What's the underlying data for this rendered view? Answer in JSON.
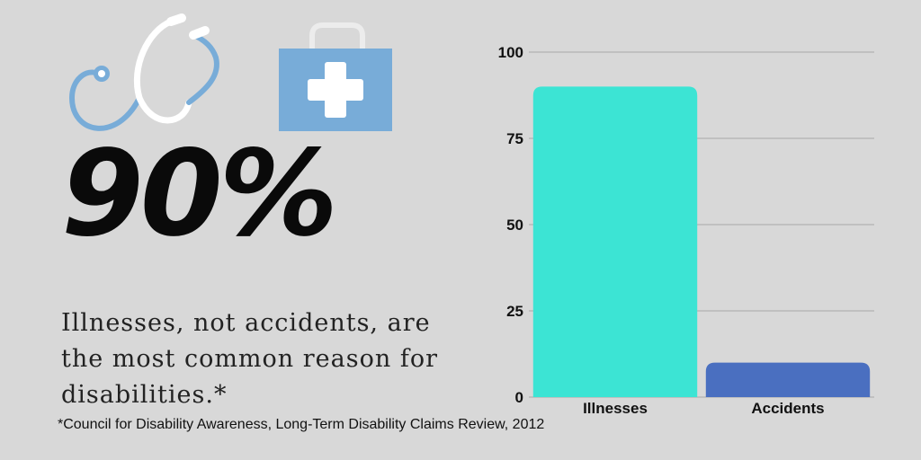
{
  "headline": {
    "value": "90%",
    "text": "Illnesses, not accidents, are the most common reason for disabilities.*"
  },
  "footnote": "*Council for Disability Awareness, Long-Term Disability Claims Review, 2012",
  "icons": [
    "stethoscope-icon",
    "medical-kit-icon"
  ],
  "colors": {
    "background": "#d8d8d8",
    "illnesses": "#3ce4d4",
    "accidents": "#4a6fc0",
    "icon_blue": "#78acd8",
    "gridline": "#a8a8a8"
  },
  "chart_data": {
    "type": "bar",
    "categories": [
      "Illnesses",
      "Accidents"
    ],
    "values": [
      90,
      10
    ],
    "bar_colors": [
      "#3ce4d4",
      "#4a6fc0"
    ],
    "ylim": [
      0,
      100
    ],
    "yticks": [
      0,
      25,
      50,
      75,
      100
    ],
    "title": "",
    "xlabel": "",
    "ylabel": "",
    "grid": true,
    "legend": "none"
  }
}
